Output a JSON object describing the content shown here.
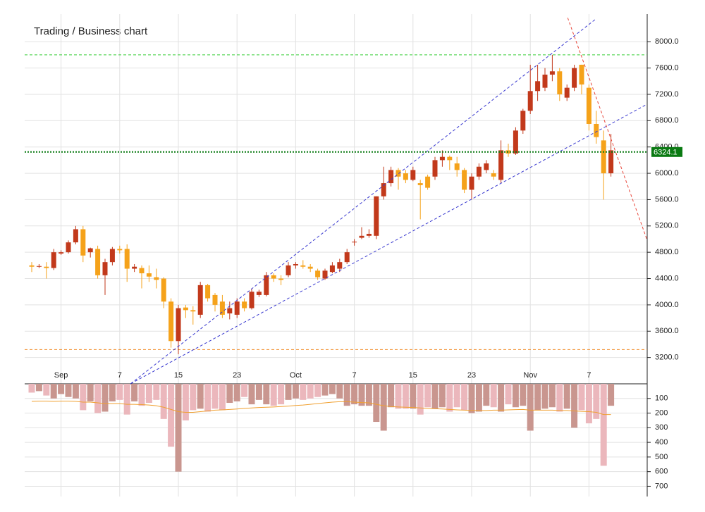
{
  "chart_data": {
    "type": "candlestick",
    "title": "Trading / Business chart",
    "categories": [
      null,
      null,
      null,
      null,
      "Sep",
      null,
      null,
      null,
      null,
      null,
      null,
      null,
      "7",
      null,
      null,
      null,
      null,
      null,
      null,
      null,
      "15",
      null,
      null,
      null,
      null,
      null,
      null,
      null,
      "23",
      null,
      null,
      null,
      null,
      null,
      null,
      null,
      "Oct",
      null,
      null,
      null,
      null,
      null,
      null,
      null,
      "7",
      null,
      null,
      null,
      null,
      null,
      null,
      null,
      "15",
      null,
      null,
      null,
      null,
      null,
      null,
      null,
      "23",
      null,
      null,
      null,
      null,
      null,
      null,
      null,
      "Nov",
      null,
      null,
      null,
      null,
      null,
      null,
      null,
      "7",
      null,
      null,
      null
    ],
    "open": [
      4600,
      4580,
      4580,
      4560,
      4780,
      4800,
      4950,
      5150,
      4800,
      4850,
      4450,
      4650,
      4850,
      4850,
      4550,
      4560,
      4480,
      4420,
      4400,
      4050,
      3450,
      3960,
      3920,
      3850,
      4300,
      4150,
      4050,
      3870,
      3850,
      4050,
      3950,
      4150,
      4150,
      4450,
      4400,
      4450,
      4600,
      4600,
      4580,
      4520,
      4400,
      4500,
      4550,
      4650,
      4950,
      5020,
      5050,
      5050,
      5650,
      5850,
      6050,
      6000,
      5900,
      5850,
      5950,
      5950,
      6200,
      6250,
      6150,
      6050,
      5750,
      5950,
      6050,
      6000,
      5900,
      6350,
      6300,
      6650,
      6950,
      7250,
      7300,
      7500,
      7550,
      7150,
      7300,
      7650,
      7300,
      6750,
      6500,
      6000
    ],
    "high": [
      4650,
      4620,
      4650,
      4850,
      4830,
      4980,
      5200,
      5200,
      4870,
      4900,
      4700,
      4880,
      4900,
      4920,
      4620,
      4600,
      4600,
      4550,
      4420,
      4100,
      4000,
      4000,
      3980,
      4350,
      4320,
      4180,
      4150,
      4050,
      4100,
      4100,
      4250,
      4230,
      4500,
      4480,
      4450,
      4650,
      4650,
      4680,
      4620,
      4550,
      4550,
      4650,
      4700,
      4850,
      5000,
      5180,
      5150,
      5650,
      6100,
      6100,
      6080,
      6050,
      6100,
      5900,
      5980,
      6250,
      6350,
      6270,
      6250,
      6080,
      6000,
      6150,
      6200,
      6050,
      6500,
      6450,
      6700,
      6980,
      7650,
      7650,
      7600,
      7800,
      7600,
      7350,
      7650,
      7650,
      7350,
      6950,
      6650,
      6600
    ],
    "low": [
      4500,
      4560,
      4400,
      4530,
      4760,
      4780,
      4920,
      4650,
      4720,
      4400,
      4150,
      4600,
      4780,
      4350,
      4500,
      4250,
      4350,
      4250,
      3950,
      3350,
      3250,
      3800,
      3700,
      3800,
      4050,
      3900,
      3800,
      3780,
      3800,
      3900,
      3930,
      4120,
      4130,
      4350,
      4300,
      4420,
      4550,
      4550,
      4500,
      4380,
      4380,
      4480,
      4500,
      4620,
      4900,
      5000,
      5020,
      5000,
      5600,
      5800,
      5750,
      5850,
      5880,
      5300,
      5750,
      5900,
      6100,
      6050,
      5950,
      5700,
      5600,
      5900,
      6000,
      5900,
      5850,
      6250,
      6280,
      6600,
      6900,
      7100,
      7250,
      7400,
      7100,
      7100,
      7250,
      7200,
      6650,
      6450,
      5600,
      5950
    ],
    "close": [
      4580,
      4590,
      4560,
      4800,
      4800,
      4950,
      5150,
      4750,
      4860,
      4450,
      4650,
      4850,
      4830,
      4550,
      4580,
      4480,
      4430,
      4380,
      4050,
      3450,
      3950,
      3920,
      3900,
      4300,
      4100,
      4000,
      3850,
      3950,
      4050,
      3950,
      4200,
      4200,
      4450,
      4400,
      4380,
      4600,
      4620,
      4580,
      4550,
      4420,
      4520,
      4600,
      4650,
      4800,
      4960,
      5050,
      5080,
      5650,
      5850,
      6050,
      5950,
      5900,
      6050,
      5820,
      5780,
      6200,
      6250,
      6200,
      6050,
      5750,
      5950,
      6100,
      6150,
      5950,
      6350,
      6300,
      6650,
      6950,
      7250,
      7400,
      7500,
      7550,
      7200,
      7300,
      7600,
      7350,
      6750,
      6550,
      6000,
      6350
    ],
    "up_color": "#c2391b",
    "down_color": "#f5a21a",
    "ylim": [
      2800,
      8420
    ],
    "yticks": [
      {
        "value": 3200,
        "label": "3200.0"
      },
      {
        "value": 3600,
        "label": "3600.0"
      },
      {
        "value": 4000,
        "label": "4000.0"
      },
      {
        "value": 4400,
        "label": "4400.0"
      },
      {
        "value": 4800,
        "label": "4800.0"
      },
      {
        "value": 5200,
        "label": "5200.0"
      },
      {
        "value": 5600,
        "label": "5600.0"
      },
      {
        "value": 6000,
        "label": "6000.0"
      },
      {
        "value": 6400,
        "label": "6400.0"
      },
      {
        "value": 6800,
        "label": "6800.0"
      },
      {
        "value": 7200,
        "label": "7200.0"
      },
      {
        "value": 7600,
        "label": "7600.0"
      },
      {
        "value": 8000,
        "label": "8000.0"
      }
    ],
    "last_price": 6324.1,
    "last_price_color": "#0a7a12",
    "levels": [
      {
        "value": 7800,
        "color": "#33cc33"
      },
      {
        "value": 3320,
        "color": "#f08a24"
      }
    ],
    "trendlines": [
      {
        "from": [
          13.5,
          2802
        ],
        "to": [
          76.9,
          8342
        ],
        "color": "#3a3ad0"
      },
      {
        "from": [
          13.5,
          2802
        ],
        "to": [
          83.9,
          7048
        ],
        "color": "#3a3ad0"
      },
      {
        "from": [
          73.1,
          8364
        ],
        "to": [
          83.9,
          4995
        ],
        "color": "#e8463a"
      }
    ],
    "volume": [
      60,
      50,
      80,
      100,
      70,
      90,
      100,
      180,
      120,
      200,
      190,
      120,
      110,
      210,
      120,
      150,
      130,
      110,
      240,
      430,
      600,
      250,
      180,
      170,
      190,
      170,
      180,
      130,
      120,
      90,
      140,
      110,
      140,
      150,
      140,
      110,
      100,
      110,
      100,
      90,
      80,
      70,
      100,
      150,
      140,
      150,
      150,
      260,
      320,
      160,
      170,
      170,
      170,
      210,
      160,
      170,
      160,
      190,
      160,
      180,
      200,
      190,
      150,
      160,
      190,
      140,
      160,
      150,
      320,
      180,
      170,
      160,
      190,
      170,
      300,
      180,
      270,
      240,
      560,
      150
    ],
    "volume_ma": [
      120,
      118,
      118,
      120,
      118,
      118,
      120,
      125,
      125,
      130,
      135,
      135,
      135,
      140,
      140,
      142,
      145,
      150,
      160,
      175,
      190,
      195,
      195,
      190,
      185,
      180,
      178,
      175,
      172,
      168,
      165,
      162,
      160,
      158,
      155,
      152,
      148,
      145,
      140,
      135,
      130,
      125,
      122,
      122,
      125,
      128,
      130,
      140,
      150,
      155,
      158,
      160,
      162,
      165,
      168,
      170,
      172,
      175,
      178,
      180,
      182,
      182,
      182,
      180,
      180,
      178,
      176,
      175,
      180,
      180,
      180,
      180,
      182,
      182,
      185,
      188,
      190,
      195,
      210,
      210
    ],
    "volume_up_color": "#c9968f",
    "volume_down_color": "#ebb7bc",
    "volume_ma_color": "#f0a030",
    "y2lim": [
      0,
      770
    ],
    "y2ticks": [
      100,
      200,
      300,
      400,
      500,
      600,
      700
    ],
    "grid": true
  }
}
